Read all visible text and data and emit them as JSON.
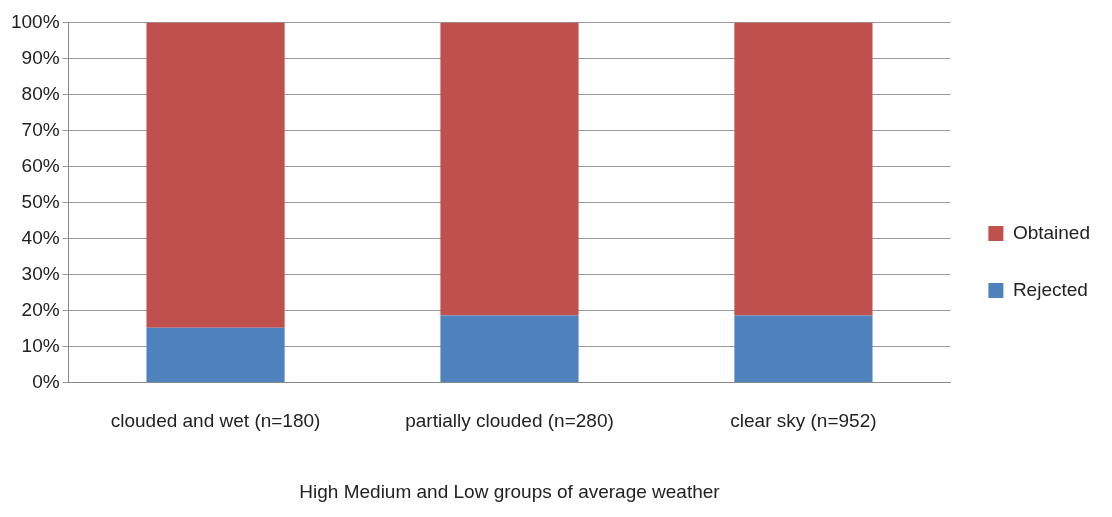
{
  "chart_data": {
    "type": "bar",
    "stacked": true,
    "xlabel": "High Medium and Low groups of average weather",
    "categories": [
      "clouded and wet (n=180)",
      "partially clouded (n=280)",
      "clear sky (n=952)"
    ],
    "series": [
      {
        "name": "Rejected",
        "color": "#4f81bd",
        "values": [
          15.2,
          18.6,
          18.6
        ]
      },
      {
        "name": "Obtained",
        "color": "#c0504d",
        "values": [
          84.8,
          81.4,
          81.4
        ]
      }
    ],
    "ylim": [
      0,
      100
    ],
    "yticks": [
      {
        "value": 0,
        "label": "0%"
      },
      {
        "value": 10,
        "label": "10%"
      },
      {
        "value": 20,
        "label": "20%"
      },
      {
        "value": 30,
        "label": "30%"
      },
      {
        "value": 40,
        "label": "40%"
      },
      {
        "value": 50,
        "label": "50%"
      },
      {
        "value": 60,
        "label": "60%"
      },
      {
        "value": 70,
        "label": "70%"
      },
      {
        "value": 80,
        "label": "80%"
      },
      {
        "value": 90,
        "label": "90%"
      },
      {
        "value": 100,
        "label": "100%"
      }
    ],
    "grid": "y",
    "legend": "right"
  }
}
